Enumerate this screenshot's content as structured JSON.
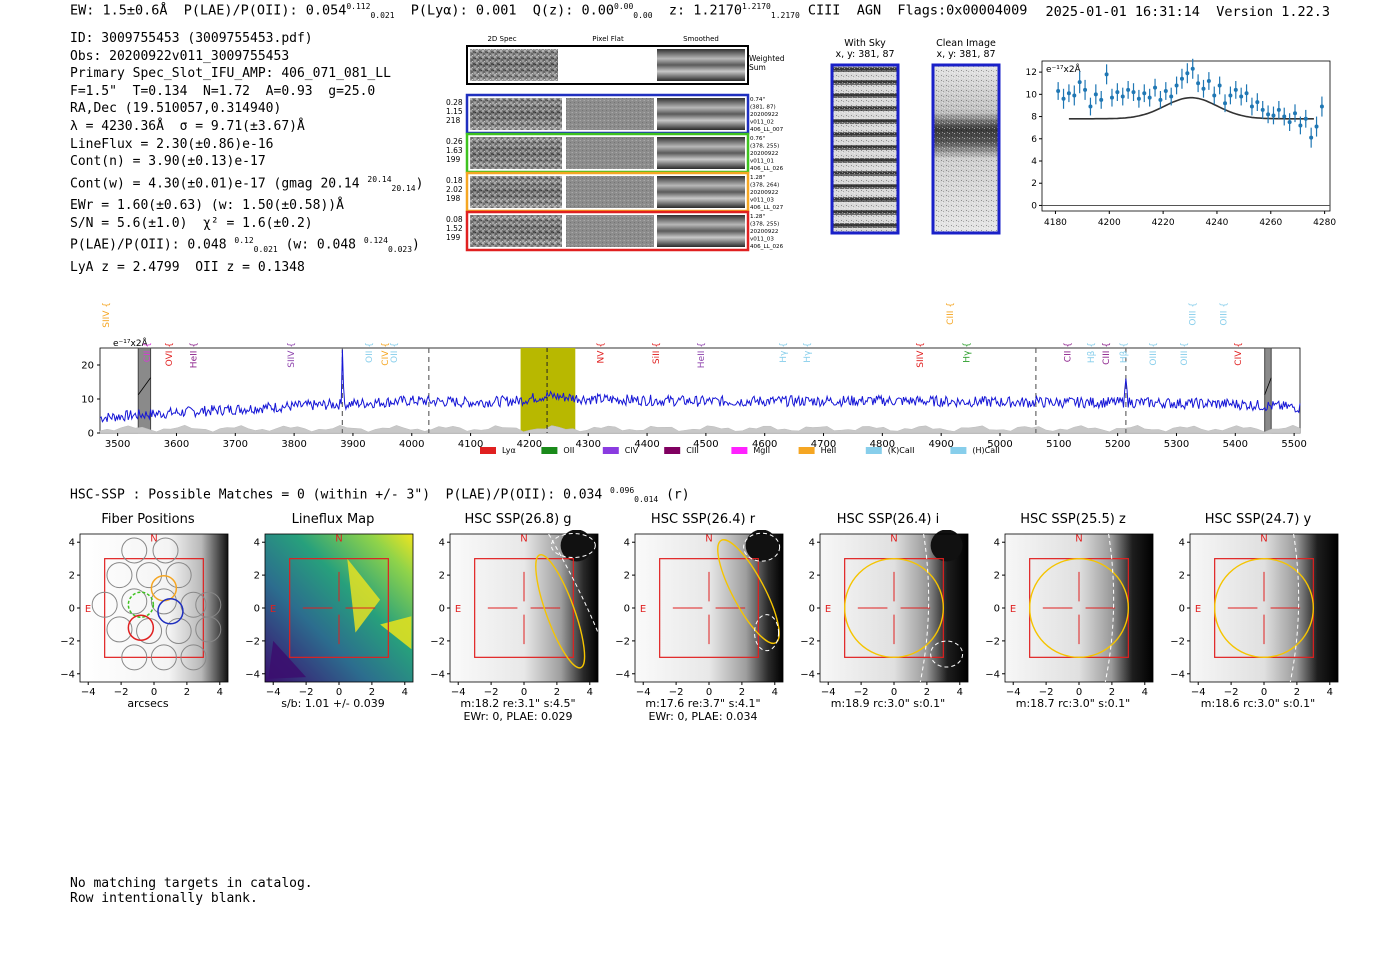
{
  "header": {
    "left": "EW: 1.5±0.6Å  P(LAE)/P(OII): 0.054",
    "ew_ratio_hi": "0.112",
    "ew_ratio_lo": "0.021",
    "plya": "P(Lyα): 0.001",
    "qz": "Q(z): 0.00",
    "qz_hi": "0.00",
    "qz_lo": "0.00",
    "z": "z: 1.2170",
    "z_hi": "1.2170",
    "z_lo": "1.2170",
    "tail": "CIII  AGN  Flags:0x00004009",
    "timestamp": "2025-01-01 16:31:14",
    "version": "Version 1.22.3"
  },
  "info": {
    "id": "ID: 3009755453 (3009755453.pdf)",
    "obs": "Obs: 20200922v011_3009755453",
    "primary": "Primary Spec_Slot_IFU_AMP: 406_071_081_LL",
    "params": "F=1.5\"  T=0.134  N=1.72  A=0.93  g=25.0",
    "radec": "RA,Dec (19.510057,0.314940)",
    "lambda": "λ = 4230.36Å  σ = 9.71(±3.67)Å",
    "lineflux": "LineFlux = 2.30(±0.86)e-16",
    "contn": "Cont(n) = 3.90(±0.13)e-17",
    "contw": "Cont(w) = 4.30(±0.01)e-17 (gmag 20.14",
    "gmag_hi": "20.14",
    "gmag_lo": "20.14",
    "ewr": "EWr = 1.60(±0.63) (w: 1.50(±0.58))Å",
    "sn": "S/N = 5.6(±1.0)  χ² = 1.6(±0.2)",
    "plae": "P(LAE)/P(OII): 0.048",
    "plae_hi": "0.12",
    "plae_lo": "0.021",
    "plae_w": "(w: 0.048",
    "plae_w_hi": "0.124",
    "plae_w_lo": "0.023",
    "lya": "LyA z = 2.4799  OII z = 0.1348"
  },
  "cutouts": {
    "col1": "2D Spec",
    "col2": "Pixel Flat",
    "col3": "Smoothed",
    "weighted": "Weighted Sum",
    "rows": [
      {
        "a": "0.28",
        "b": "1.15",
        "c": "218",
        "info": [
          "0.74\"",
          "(381, 87)",
          "20200922",
          "v011_02",
          "406_LL_007"
        ],
        "color": "#1f2fbf"
      },
      {
        "a": "0.26",
        "b": "1.63",
        "c": "199",
        "info": [
          "0.76\"",
          "(378, 255)",
          "20200922",
          "v011_01",
          "406_LL_026"
        ],
        "color": "#3ec21f"
      },
      {
        "a": "0.18",
        "b": "2.02",
        "c": "198",
        "info": [
          "1.28\"",
          "(378, 264)",
          "20200922",
          "v011_03",
          "406_LL_027"
        ],
        "color": "#f5a623"
      },
      {
        "a": "0.08",
        "b": "1.52",
        "c": "199",
        "info": [
          "1.28\"",
          "(378, 255)",
          "20200922",
          "v011_03",
          "406_LL_026"
        ],
        "color": "#e02020"
      }
    ]
  },
  "sky": {
    "with_sky": "With Sky",
    "clean": "Clean Image",
    "coords": "x, y: 381, 87"
  },
  "zoom_chart_data": {
    "type": "scatter",
    "ylabel": "e⁻¹⁷x2Å",
    "xlim": [
      4175,
      4282
    ],
    "ylim": [
      -0.5,
      13
    ],
    "xticks": [
      4180,
      4200,
      4220,
      4240,
      4260,
      4280
    ],
    "yticks": [
      0,
      2,
      4,
      6,
      8,
      10,
      12
    ],
    "fit": {
      "continuum": 7.8,
      "center": 4230.36,
      "sigma": 9.71,
      "amp": 1.9
    },
    "x": [
      4181,
      4183,
      4185,
      4187,
      4189,
      4191,
      4193,
      4195,
      4197,
      4199,
      4201,
      4203,
      4205,
      4207,
      4209,
      4211,
      4213,
      4215,
      4217,
      4219,
      4221,
      4223,
      4225,
      4227,
      4229,
      4231,
      4233,
      4235,
      4237,
      4239,
      4241,
      4243,
      4245,
      4247,
      4249,
      4251,
      4253,
      4255,
      4257,
      4259,
      4261,
      4263,
      4265,
      4267,
      4269,
      4271,
      4273,
      4275,
      4277,
      4279
    ],
    "y": [
      10.3,
      9.6,
      10.1,
      9.9,
      11.1,
      10.4,
      8.9,
      10.0,
      9.5,
      11.8,
      9.7,
      10.2,
      9.8,
      10.4,
      10.2,
      9.6,
      10.1,
      9.7,
      10.6,
      9.5,
      10.3,
      9.8,
      10.8,
      11.4,
      11.9,
      12.3,
      11.0,
      10.5,
      11.2,
      9.9,
      10.8,
      9.2,
      9.9,
      10.4,
      9.8,
      10.1,
      8.9,
      9.3,
      8.6,
      8.2,
      8.1,
      8.6,
      8.0,
      7.5,
      8.3,
      7.2,
      7.8,
      6.1,
      7.1,
      8.9
    ],
    "err": [
      0.8,
      0.9,
      0.8,
      0.9,
      1.0,
      0.9,
      0.8,
      0.9,
      0.8,
      0.9,
      0.8,
      0.8,
      0.8,
      0.8,
      0.8,
      0.8,
      0.8,
      0.8,
      0.8,
      0.8,
      0.8,
      0.8,
      0.8,
      0.9,
      0.9,
      0.9,
      0.8,
      0.8,
      0.8,
      0.8,
      0.8,
      0.8,
      0.8,
      0.8,
      0.8,
      0.8,
      0.8,
      0.8,
      0.8,
      0.8,
      0.8,
      0.8,
      0.8,
      0.8,
      0.8,
      0.8,
      0.8,
      0.9,
      0.9,
      0.9
    ]
  },
  "spectrum_chart_data": {
    "type": "line",
    "ylabel": "e⁻¹⁷x2Å",
    "xlim": [
      3470,
      5510
    ],
    "ylim": [
      0,
      25
    ],
    "xticks": [
      3500,
      3600,
      3700,
      3800,
      3900,
      4000,
      4100,
      4200,
      4300,
      4400,
      4500,
      4600,
      4700,
      4800,
      4900,
      5000,
      5100,
      5200,
      5300,
      5400,
      5500
    ],
    "yticks": [
      0,
      10,
      20
    ],
    "highlight": [
      4185,
      4278
    ],
    "center_line": 4230,
    "dashed_lines": [
      3882,
      4029,
      5061,
      5214
    ],
    "masked": [
      [
        3535,
        3556
      ],
      [
        5450,
        5461
      ]
    ],
    "series_anchors": [
      {
        "x": 3470,
        "y": 4.5
      },
      {
        "x": 3550,
        "y": 5.5
      },
      {
        "x": 3650,
        "y": 6.5
      },
      {
        "x": 3750,
        "y": 7.5
      },
      {
        "x": 3880,
        "y": 8.5
      },
      {
        "x": 3882,
        "y": 24.5
      },
      {
        "x": 3885,
        "y": 8.5
      },
      {
        "x": 4000,
        "y": 9.5
      },
      {
        "x": 4100,
        "y": 9.0
      },
      {
        "x": 4180,
        "y": 9.5
      },
      {
        "x": 4230,
        "y": 11.0
      },
      {
        "x": 4300,
        "y": 10.0
      },
      {
        "x": 4500,
        "y": 9.3
      },
      {
        "x": 4800,
        "y": 9.5
      },
      {
        "x": 5060,
        "y": 9.0
      },
      {
        "x": 5061,
        "y": 12.5
      },
      {
        "x": 5063,
        "y": 9.0
      },
      {
        "x": 5210,
        "y": 9.0
      },
      {
        "x": 5214,
        "y": 16.0
      },
      {
        "x": 5218,
        "y": 9.0
      },
      {
        "x": 5400,
        "y": 8.5
      },
      {
        "x": 5510,
        "y": 7.5
      }
    ],
    "lines_labels": [
      {
        "name": "CII",
        "x": 3555,
        "color": "#d63bd6",
        "level": "low"
      },
      {
        "name": "SIIV",
        "x": 3485,
        "color": "#f5a623",
        "level": "high"
      },
      {
        "name": "OVI",
        "x": 3592,
        "color": "#e02020",
        "level": "low"
      },
      {
        "name": "HeII",
        "x": 3634,
        "color": "#8b1f8b",
        "level": "low"
      },
      {
        "name": "SIIV",
        "x": 3800,
        "color": "#8e44ad",
        "level": "low"
      },
      {
        "name": "OII",
        "x": 3932,
        "color": "#87ceeb",
        "level": "low"
      },
      {
        "name": "CIV",
        "x": 3960,
        "color": "#f5a623",
        "level": "low"
      },
      {
        "name": "OII",
        "x": 3975,
        "color": "#87ceeb",
        "level": "low"
      },
      {
        "name": "NV",
        "x": 4326,
        "color": "#e02020",
        "level": "low"
      },
      {
        "name": "SiII",
        "x": 4420,
        "color": "#e02020",
        "level": "low"
      },
      {
        "name": "HeII",
        "x": 4497,
        "color": "#8e44ad",
        "level": "low"
      },
      {
        "name": "Hγ",
        "x": 4636,
        "color": "#87ceeb",
        "level": "low"
      },
      {
        "name": "Hγ",
        "x": 4677,
        "color": "#87ceeb",
        "level": "low"
      },
      {
        "name": "SIIV",
        "x": 4869,
        "color": "#e02020",
        "level": "low"
      },
      {
        "name": "CIII",
        "x": 4920,
        "color": "#f5a623",
        "level": "high"
      },
      {
        "name": "Hγ",
        "x": 4948,
        "color": "#2a9d2a",
        "level": "low"
      },
      {
        "name": "CII",
        "x": 5120,
        "color": "#8b1f8b",
        "level": "low"
      },
      {
        "name": "Hβ",
        "x": 5160,
        "color": "#87ceeb",
        "level": "low"
      },
      {
        "name": "CIII",
        "x": 5185,
        "color": "#8b1f8b",
        "level": "low"
      },
      {
        "name": "Hβ",
        "x": 5215,
        "color": "#87ceeb",
        "level": "low"
      },
      {
        "name": "OIII",
        "x": 5265,
        "color": "#87ceeb",
        "level": "low"
      },
      {
        "name": "OIII",
        "x": 5318,
        "color": "#87ceeb",
        "level": "low"
      },
      {
        "name": "OIII",
        "x": 5332,
        "color": "#87ceeb",
        "level": "high"
      },
      {
        "name": "OIII",
        "x": 5385,
        "color": "#87ceeb",
        "level": "high"
      },
      {
        "name": "CIV",
        "x": 5410,
        "color": "#e02020",
        "level": "low"
      }
    ],
    "legend": [
      {
        "name": "Lyα",
        "color": "#e02020"
      },
      {
        "name": "OII",
        "color": "#1a8a1a"
      },
      {
        "name": "CIV",
        "color": "#8a3be0"
      },
      {
        "name": "CIII",
        "color": "#800060"
      },
      {
        "name": "MgII",
        "color": "#ff22ff"
      },
      {
        "name": "HeII",
        "color": "#f5a623"
      },
      {
        "name": "(K)CaII",
        "color": "#87ceeb"
      },
      {
        "name": "(H)CaII",
        "color": "#87ceeb"
      }
    ]
  },
  "hsc": {
    "title": "HSC-SSP : Possible Matches = 0 (within +/- 3\")  P(LAE)/P(OII): 0.034",
    "ratio_hi": "0.096",
    "ratio_lo": "0.014",
    "ratio_band": "(r)",
    "north": "N",
    "east": "E",
    "ticks": [
      "−4",
      "−2",
      "0",
      "2",
      "4"
    ],
    "panels": [
      {
        "title": "Fiber Positions",
        "cap1": "arcsecs",
        "cap2": "",
        "kind": "fibers"
      },
      {
        "title": "Lineflux Map",
        "cap1": "s/b: 1.01 +/- 0.039",
        "cap2": "",
        "kind": "lineflux"
      },
      {
        "title": "HSC SSP(26.8) g",
        "cap1": "m:18.2  re:3.1\"  s:4.5\"",
        "cap2": "EWr: 0, PLAE: 0.029",
        "kind": "g"
      },
      {
        "title": "HSC SSP(26.4) r",
        "cap1": "m:17.6  re:3.7\"  s:4.1\"",
        "cap2": "EWr: 0, PLAE: 0.034",
        "kind": "r"
      },
      {
        "title": "HSC SSP(26.4) i",
        "cap1": "m:18.9 rc:3.0\"  s:0.1\"",
        "cap2": "",
        "kind": "i"
      },
      {
        "title": "HSC SSP(25.5) z",
        "cap1": "m:18.7 rc:3.0\"  s:0.1\"",
        "cap2": "",
        "kind": "z"
      },
      {
        "title": "HSC SSP(24.7) y",
        "cap1": "m:18.6 rc:3.0\"  s:0.1\"",
        "cap2": "",
        "kind": "y"
      }
    ]
  },
  "footnote": {
    "line1": "No matching targets in catalog.",
    "line2": "Row intentionally blank."
  }
}
